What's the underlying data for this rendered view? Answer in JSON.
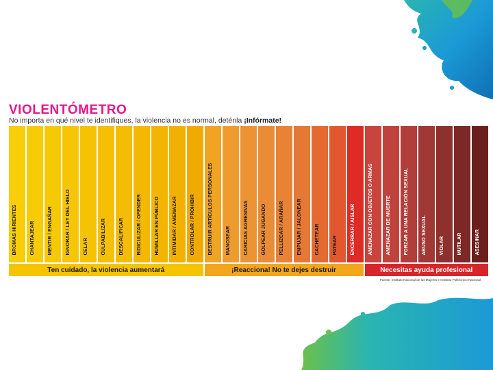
{
  "title": "VIOLENTÓMETRO",
  "subtitle": {
    "text": "No importa en qué nivel te identifiques, la violencia no es normal, deténla ",
    "emphasis": "¡Infórmate!"
  },
  "levels": [
    {
      "label": "BROMAS HIRIENTES",
      "color": "#f7ce07"
    },
    {
      "label": "CHANTAJEAR",
      "color": "#f7cc06"
    },
    {
      "label": "MENTIR / ENGAÑAR",
      "color": "#f6c905"
    },
    {
      "label": "IGNORAR / LEY DEL HIELO",
      "color": "#f6c604"
    },
    {
      "label": "CELAR",
      "color": "#f5c304"
    },
    {
      "label": "CULPABILIZAR",
      "color": "#f5c003"
    },
    {
      "label": "DESCALIFICAR",
      "color": "#f4bc03"
    },
    {
      "label": "RIDICULIZAR / OFENDER",
      "color": "#f4b802"
    },
    {
      "label": "HUMILLAR EN PÚBLICO",
      "color": "#f3b402"
    },
    {
      "label": "INTIMIDAR / AMENAZAR",
      "color": "#f2b002"
    },
    {
      "label": "CONTROLAR / PROHIBIR",
      "color": "#f1aa02"
    },
    {
      "label": "DESTRUIR ARTÍCULOS PERSONALES",
      "color": "#f0a422"
    },
    {
      "label": "MANOSEAR",
      "color": "#ee9c2e"
    },
    {
      "label": "CARICIAS AGRESIVAS",
      "color": "#ec9433"
    },
    {
      "label": "GOLPEAR JUGANDO",
      "color": "#ea8b36"
    },
    {
      "label": "PELLIZCAR / ARAÑAR",
      "color": "#e88336"
    },
    {
      "label": "EMPUJAR / JALONEAR",
      "color": "#e67835"
    },
    {
      "label": "CACHETEAR",
      "color": "#e46a32"
    },
    {
      "label": "PATEAR",
      "color": "#e2572d"
    },
    {
      "label": "ENCERRAR / AISLAR",
      "color": "#df2a25"
    },
    {
      "label": "AMENAZAR CON OBJETOS O ARMAS",
      "color": "#c8443c"
    },
    {
      "label": "AMENAZAR DE MUERTE",
      "color": "#c0423c"
    },
    {
      "label": "FORZAR A UNA RELACIÓN SEXUAL",
      "color": "#b23e3b"
    },
    {
      "label": "ABUSO SEXUAL",
      "color": "#a03836"
    },
    {
      "label": "VIOLAR",
      "color": "#8d302e"
    },
    {
      "label": "MUTILAR",
      "color": "#7c2826"
    },
    {
      "label": "ASESINAR",
      "color": "#6b1f1c"
    }
  ],
  "bands": [
    {
      "label": "Ten cuidado, la violencia aumentará",
      "color": "#f5c400",
      "span": 11
    },
    {
      "label": "¡Reacciona! No te dejes destruir",
      "color": "#f3a51b",
      "span": 9
    },
    {
      "label": "Necesitas ayuda profesional",
      "color": "#d7262b",
      "span": 7
    }
  ],
  "source": "Fuente: Instituto Nacional de las Mujeres e Instituto Politécnico Nacional",
  "colors": {
    "title": "#e6168a",
    "splash_blue": "#1b9ad6",
    "splash_teal": "#2ab5b0",
    "splash_green": "#6cc04a"
  }
}
